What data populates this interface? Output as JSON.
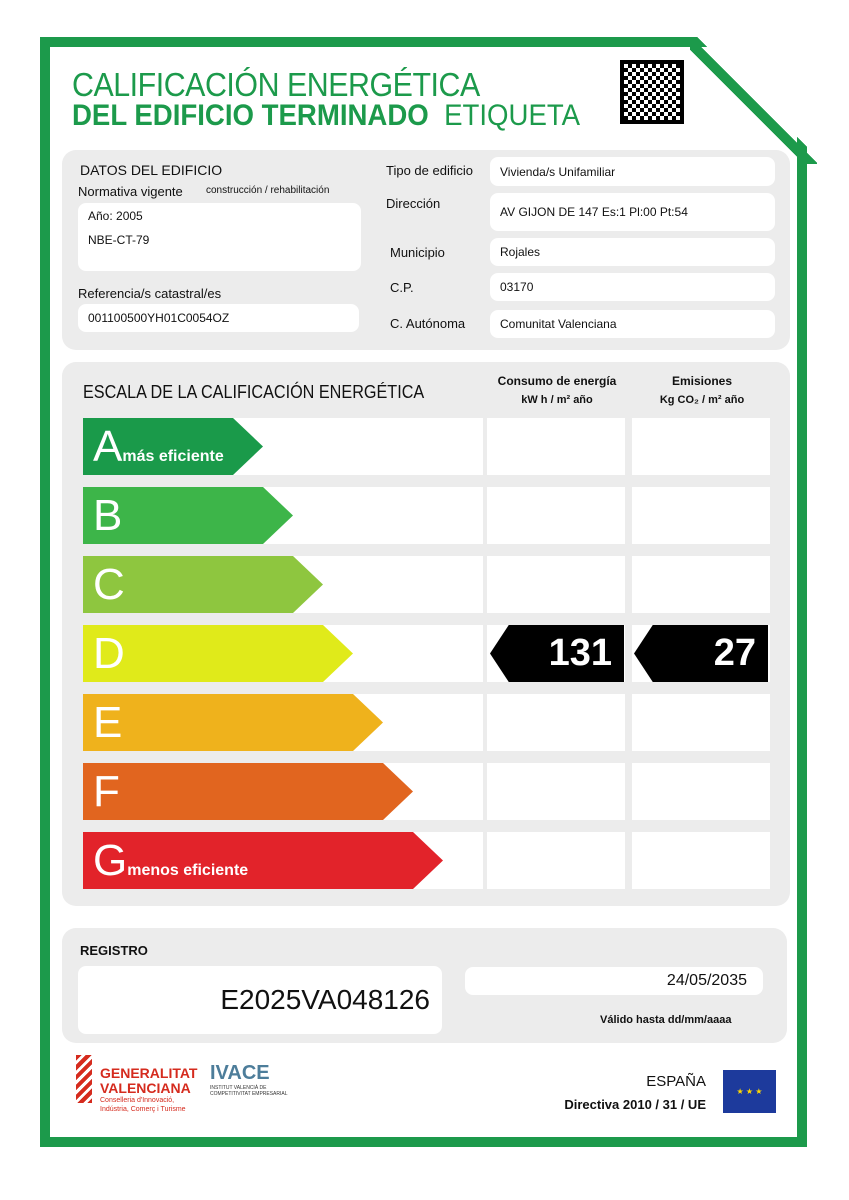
{
  "header": {
    "title_line1": "CALIFICACIÓN ENERGÉTICA",
    "title_line2": "DEL EDIFICIO  TERMINADO",
    "title_suffix": "ETIQUETA"
  },
  "building": {
    "section_title": "DATOS DEL EDIFICIO",
    "normativa_label": "Normativa vigente",
    "normativa_sub": "construcción / rehabilitación",
    "year": "Año: 2005",
    "norma": "NBE-CT-79",
    "catastral_label": "Referencia/s catastral/es",
    "catastral": "001100500YH01C0054OZ",
    "fields": [
      {
        "label": "Tipo de edificio",
        "value": "Vivienda/s Unifamiliar"
      },
      {
        "label": "Dirección",
        "value": "AV GIJON DE 147 Es:1 Pl:00 Pt:54"
      },
      {
        "label": "Municipio",
        "value": "Rojales"
      },
      {
        "label": "C.P.",
        "value": "03170"
      },
      {
        "label": "C. Autónoma",
        "value": "Comunitat Valenciana"
      }
    ]
  },
  "scale": {
    "title": "ESCALA DE LA CALIFICACIÓN ENERGÉTICA",
    "consumo_label": "Consumo de energía",
    "consumo_unit": "kW h / m² año",
    "emis_label": "Emisiones",
    "emis_unit": "Kg CO₂ / m² año",
    "classes": [
      {
        "letter": "A",
        "text": "más eficiente",
        "color": "#1a9a4a"
      },
      {
        "letter": "B",
        "text": "",
        "color": "#3db549"
      },
      {
        "letter": "C",
        "text": "",
        "color": "#8ec63f"
      },
      {
        "letter": "D",
        "text": "",
        "color": "#e0ea1a"
      },
      {
        "letter": "E",
        "text": "",
        "color": "#efb21c"
      },
      {
        "letter": "F",
        "text": "",
        "color": "#e1651f"
      },
      {
        "letter": "G",
        "text": "menos eficiente",
        "color": "#e2232a"
      }
    ],
    "rating": "D",
    "consumo_value": "131",
    "emis_value": "27"
  },
  "registro": {
    "label": "REGISTRO",
    "number": "E2025VA048126",
    "valid_date": "24/05/2035",
    "valid_label": "Válido hasta dd/mm/aaaa"
  },
  "footer": {
    "gv1": "GENERALITAT",
    "gv2": "VALENCIANA",
    "gv3": "Conselleria d'Innovació,",
    "gv4": "Indústria, Comerç i Turisme",
    "ivace": "IVACE",
    "ivace_sub1": "INSTITUT VALENCIÀ DE",
    "ivace_sub2": "COMPETITIVITAT EMPRESARIAL",
    "country": "ESPAÑA",
    "directive": "Directiva 2010 / 31 / UE"
  }
}
